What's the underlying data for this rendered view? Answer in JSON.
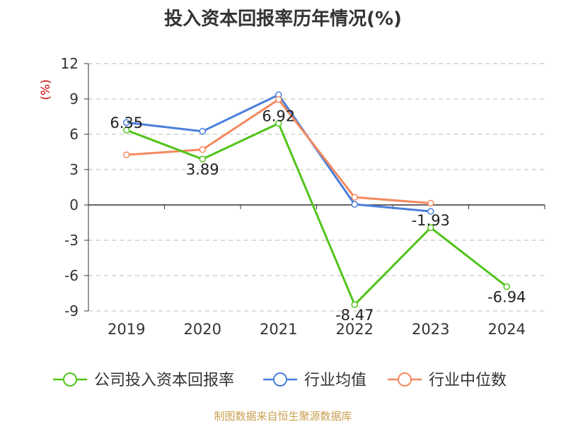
{
  "chart_data": {
    "type": "line",
    "title": "投入资本回报率历年情况(%)",
    "ylabel": "(%)",
    "xlabel": "",
    "categories": [
      "2019",
      "2020",
      "2021",
      "2022",
      "2023",
      "2024"
    ],
    "ylim": [
      -9,
      12
    ],
    "yticks": [
      "12",
      "9",
      "6",
      "3",
      "0",
      "-3",
      "-6",
      "-9"
    ],
    "grid": true,
    "legend_position": "bottom",
    "series": [
      {
        "name": "公司投入资本回报率",
        "color": "#52c41a",
        "values": [
          6.35,
          3.89,
          6.92,
          -8.47,
          -1.93,
          -6.94
        ],
        "labels": [
          "6.35",
          "3.89",
          "6.92",
          "-8.47",
          "-1.93",
          "-6.94"
        ]
      },
      {
        "name": "行业均值",
        "color": "#4a7fdc",
        "values": [
          7.0,
          6.25,
          9.35,
          0.05,
          -0.55,
          null
        ]
      },
      {
        "name": "行业中位数",
        "color": "#f4895f",
        "values": [
          4.25,
          4.7,
          8.95,
          0.65,
          0.15,
          null
        ]
      }
    ]
  },
  "source": "制图数据来自恒生聚源数据库",
  "colors": {
    "axis": "#333333",
    "grid": "#bbbbbb",
    "ylabel": "#cc0000",
    "source": "#c8a050"
  }
}
